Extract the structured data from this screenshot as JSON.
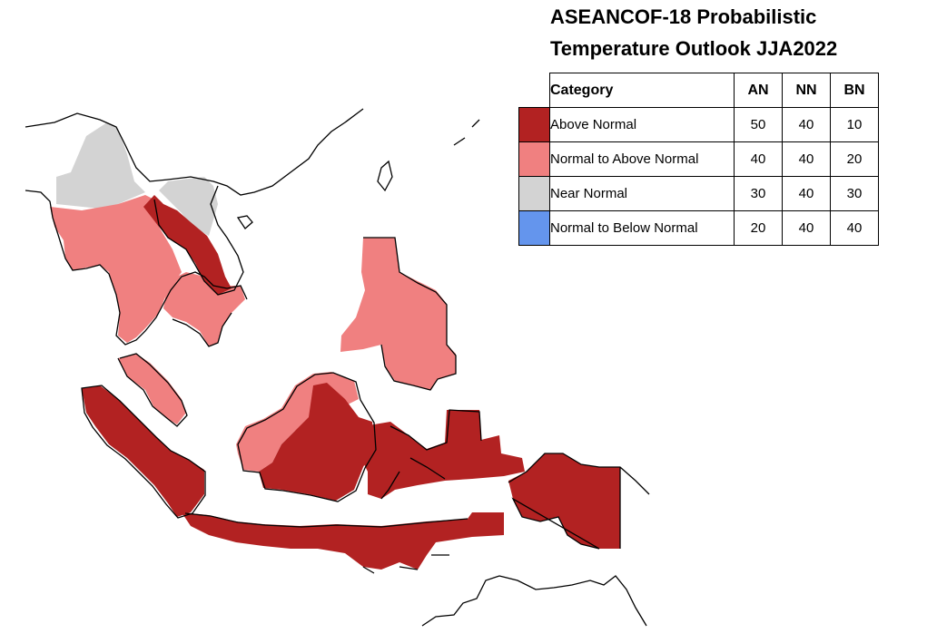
{
  "title": {
    "line1": "ASEANCOF-18 Probabilistic",
    "line2": "Temperature Outlook JJA2022"
  },
  "legend": {
    "headers": {
      "category": "Category",
      "an": "AN",
      "nn": "NN",
      "bn": "BN"
    },
    "rows": [
      {
        "label": "Above Normal",
        "an": "50",
        "nn": "40",
        "bn": "10",
        "color": "#b22222"
      },
      {
        "label": "Normal to Above Normal",
        "an": "40",
        "nn": "40",
        "bn": "20",
        "color": "#f08080"
      },
      {
        "label": "Near Normal",
        "an": "30",
        "nn": "40",
        "bn": "30",
        "color": "#d3d3d3"
      },
      {
        "label": "Normal to Below Normal",
        "an": "20",
        "nn": "40",
        "bn": "40",
        "color": "#6495ed"
      }
    ]
  },
  "map": {
    "regions": [
      {
        "name": "northern-myanmar",
        "category": "Near Normal",
        "color": "#d3d3d3"
      },
      {
        "name": "northern-vietnam",
        "category": "Near Normal",
        "color": "#d3d3d3"
      },
      {
        "name": "central-myanmar-thailand",
        "category": "Normal to Above Normal",
        "color": "#f08080"
      },
      {
        "name": "cambodia-southern-vietnam",
        "category": "Normal to Above Normal",
        "color": "#f08080"
      },
      {
        "name": "laos",
        "category": "Above Normal",
        "color": "#b22222"
      },
      {
        "name": "philippines",
        "category": "Normal to Above Normal",
        "color": "#f08080"
      },
      {
        "name": "malay-peninsula",
        "category": "Normal to Above Normal",
        "color": "#f08080"
      },
      {
        "name": "western-borneo",
        "category": "Normal to Above Normal",
        "color": "#f08080"
      },
      {
        "name": "sumatra",
        "category": "Above Normal",
        "color": "#b22222"
      },
      {
        "name": "eastern-borneo",
        "category": "Above Normal",
        "color": "#b22222"
      },
      {
        "name": "sulawesi-maluku",
        "category": "Above Normal",
        "color": "#b22222"
      },
      {
        "name": "java-nusa-tenggara",
        "category": "Above Normal",
        "color": "#b22222"
      },
      {
        "name": "papua",
        "category": "Above Normal",
        "color": "#b22222"
      }
    ]
  }
}
